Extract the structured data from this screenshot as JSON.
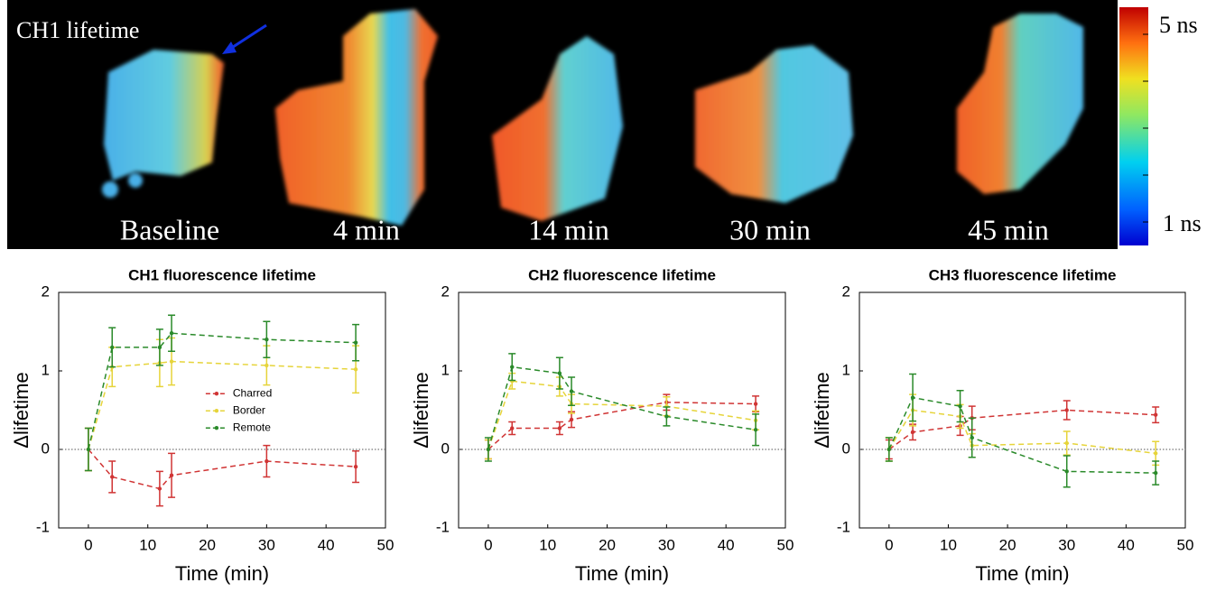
{
  "top_panel": {
    "label": "CH1 lifetime",
    "timepoints": [
      "Baseline",
      "4 min",
      "14 min",
      "30 min",
      "45 min"
    ],
    "colorbar_max": "5 ns",
    "colorbar_min": "1 ns"
  },
  "chart_data": [
    {
      "type": "line",
      "title": "CH1 fluorescence lifetime",
      "xlabel": "Time (min)",
      "ylabel": "Δlifetime",
      "x": [
        0,
        4,
        12,
        14,
        30,
        45
      ],
      "xlim": [
        -5,
        50
      ],
      "xticks": [
        0,
        10,
        20,
        30,
        40,
        50
      ],
      "ylim": [
        -1,
        2
      ],
      "yticks": [
        -1,
        0,
        1,
        2
      ],
      "hline": 0,
      "legend": "center",
      "series": [
        {
          "name": "Charred",
          "color": "#d03434",
          "values": [
            0,
            -0.35,
            -0.5,
            -0.33,
            -0.15,
            -0.22
          ],
          "errors": [
            0.27,
            0.2,
            0.22,
            0.28,
            0.2,
            0.2
          ]
        },
        {
          "name": "Border",
          "color": "#e6d43a",
          "values": [
            0,
            1.05,
            1.1,
            1.12,
            1.07,
            1.02
          ],
          "errors": [
            0.27,
            0.25,
            0.3,
            0.3,
            0.25,
            0.3
          ]
        },
        {
          "name": "Remote",
          "color": "#2a8a2a",
          "values": [
            0,
            1.3,
            1.3,
            1.48,
            1.4,
            1.36
          ],
          "errors": [
            0.27,
            0.25,
            0.23,
            0.23,
            0.23,
            0.23
          ]
        }
      ]
    },
    {
      "type": "line",
      "title": "CH2 fluorescence lifetime",
      "xlabel": "Time (min)",
      "ylabel": "Δlifetime",
      "x": [
        0,
        4,
        12,
        14,
        30,
        45
      ],
      "xlim": [
        -5,
        50
      ],
      "xticks": [
        0,
        10,
        20,
        30,
        40,
        50
      ],
      "ylim": [
        -1,
        2
      ],
      "yticks": [
        -1,
        0,
        1,
        2
      ],
      "hline": 0,
      "series": [
        {
          "color": "#d03434",
          "values": [
            0,
            0.27,
            0.27,
            0.38,
            0.6,
            0.58
          ],
          "errors": [
            0.12,
            0.08,
            0.08,
            0.1,
            0.1,
            0.1
          ]
        },
        {
          "color": "#e6d43a",
          "values": [
            0,
            0.87,
            0.8,
            0.58,
            0.55,
            0.37
          ],
          "errors": [
            0.12,
            0.1,
            0.12,
            0.12,
            0.12,
            0.12
          ]
        },
        {
          "color": "#2a8a2a",
          "values": [
            0,
            1.05,
            0.97,
            0.74,
            0.42,
            0.25
          ],
          "errors": [
            0.15,
            0.17,
            0.2,
            0.18,
            0.12,
            0.2
          ]
        }
      ]
    },
    {
      "type": "line",
      "title": "CH3 fluorescence lifetime",
      "xlabel": "Time (min)",
      "ylabel": "Δlifetime",
      "x": [
        0,
        4,
        12,
        14,
        30,
        45
      ],
      "xlim": [
        -5,
        50
      ],
      "xticks": [
        0,
        10,
        20,
        30,
        40,
        50
      ],
      "ylim": [
        -1,
        2
      ],
      "yticks": [
        -1,
        0,
        1,
        2
      ],
      "hline": 0,
      "series": [
        {
          "color": "#d03434",
          "values": [
            0,
            0.22,
            0.3,
            0.4,
            0.5,
            0.44
          ],
          "errors": [
            0.12,
            0.1,
            0.12,
            0.15,
            0.12,
            0.1
          ]
        },
        {
          "color": "#e6d43a",
          "values": [
            0,
            0.5,
            0.42,
            0.05,
            0.08,
            -0.05
          ],
          "errors": [
            0.15,
            0.2,
            0.15,
            0.15,
            0.15,
            0.15
          ]
        },
        {
          "color": "#2a8a2a",
          "values": [
            0,
            0.66,
            0.55,
            0.15,
            -0.28,
            -0.3
          ],
          "errors": [
            0.15,
            0.3,
            0.2,
            0.25,
            0.2,
            0.15
          ]
        }
      ]
    }
  ]
}
